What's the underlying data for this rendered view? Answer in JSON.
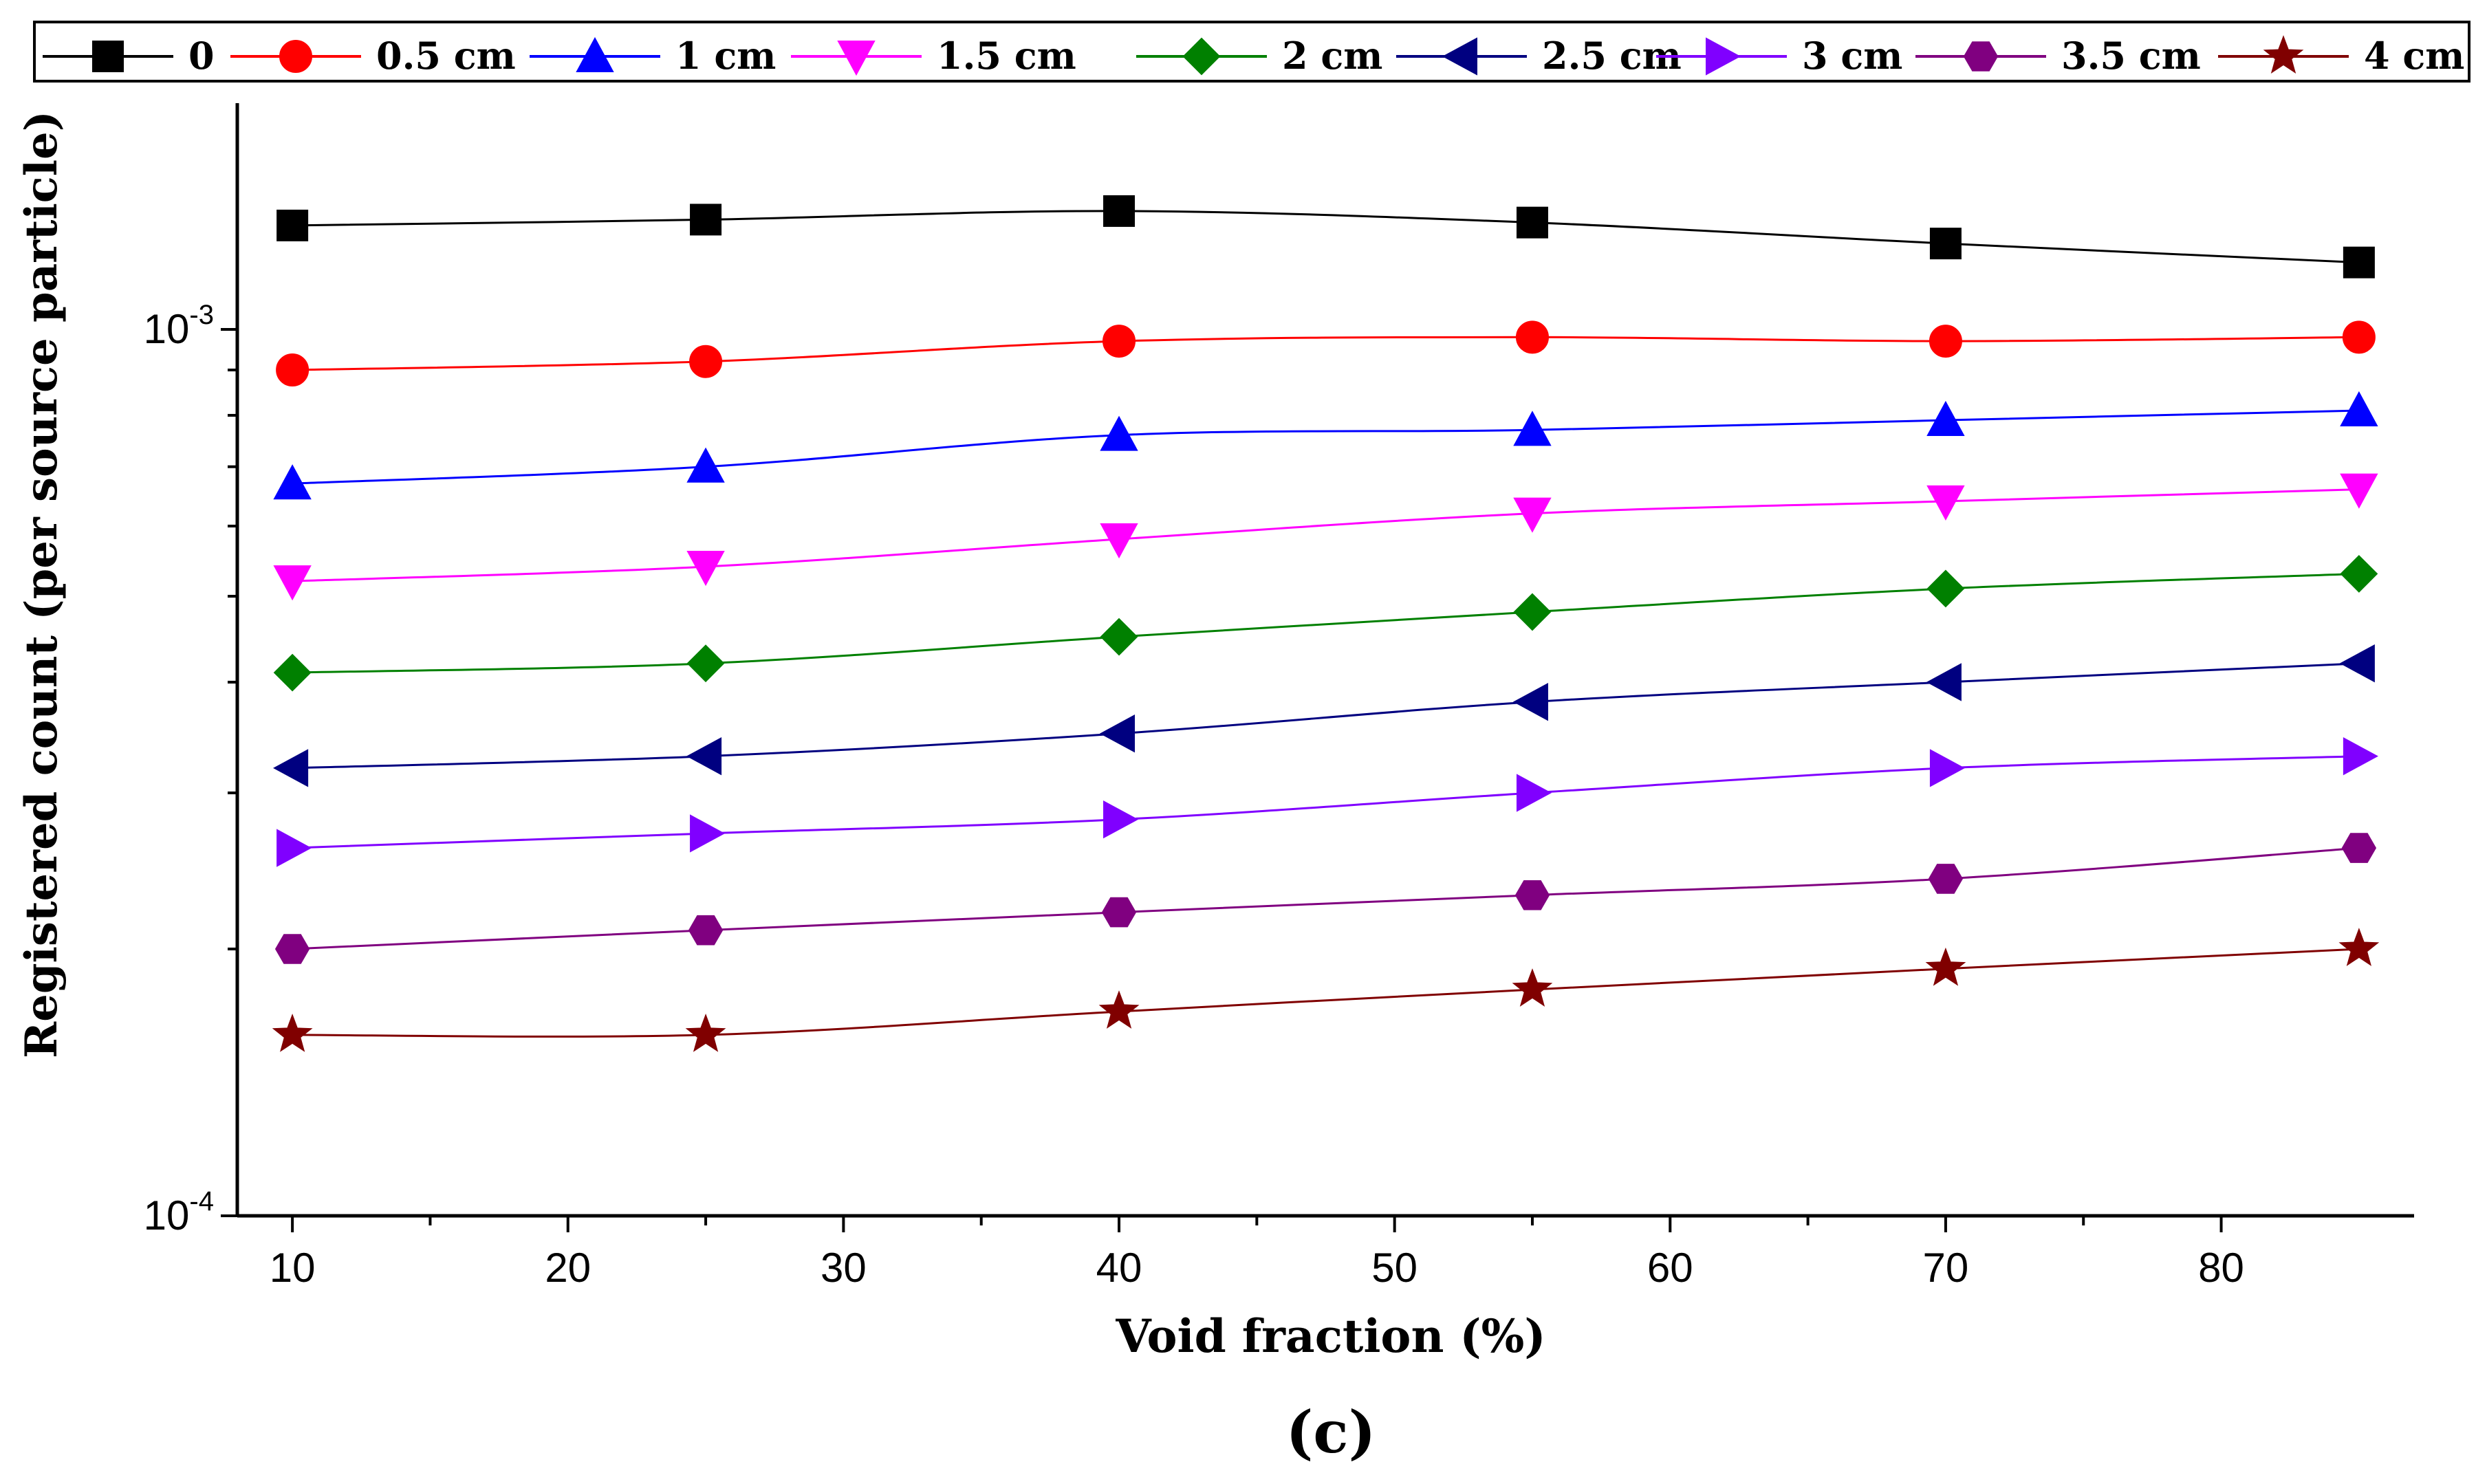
{
  "chart_data": {
    "type": "line",
    "title": "",
    "panel_label": "(c)",
    "xlabel": "Void fraction (%)",
    "ylabel": "Registered count (per source particle)",
    "yscale": "log",
    "xlim": [
      8,
      87
    ],
    "ylim": [
      0.0001,
      0.0018
    ],
    "x": [
      10,
      25,
      40,
      55,
      70,
      85
    ],
    "x_ticks": [
      10,
      20,
      30,
      40,
      50,
      60,
      70,
      80
    ],
    "x_tick_labels": [
      "10",
      "20",
      "30",
      "40",
      "50",
      "60",
      "70",
      "80"
    ],
    "y_ticks": [
      {
        "value": 0.001,
        "base": "10",
        "exp": "-3"
      },
      {
        "value": 0.0001,
        "base": "10",
        "exp": "-4"
      }
    ],
    "legend_position": "top",
    "series": [
      {
        "name": "0",
        "marker": "square",
        "color": "#000000",
        "values": [
          0.00131,
          0.00133,
          0.00136,
          0.00132,
          0.00125,
          0.00119
        ]
      },
      {
        "name": "0.5 cm",
        "marker": "circle",
        "color": "#ff0000",
        "values": [
          0.0009,
          0.00092,
          0.00097,
          0.00098,
          0.00097,
          0.00098
        ]
      },
      {
        "name": "1 cm",
        "marker": "triangle-up",
        "color": "#0000ff",
        "values": [
          0.00067,
          0.0007,
          0.00076,
          0.00077,
          0.00079,
          0.00081
        ]
      },
      {
        "name": "1.5 cm",
        "marker": "triangle-down",
        "color": "#ff00ff",
        "values": [
          0.00052,
          0.00054,
          0.00058,
          0.00062,
          0.00064,
          0.00066
        ]
      },
      {
        "name": "2 cm",
        "marker": "diamond",
        "color": "#008000",
        "values": [
          0.00041,
          0.00042,
          0.00045,
          0.00048,
          0.00051,
          0.00053
        ]
      },
      {
        "name": "2.5 cm",
        "marker": "triangle-left",
        "color": "#000080",
        "values": [
          0.00032,
          0.00033,
          0.00035,
          0.00038,
          0.0004,
          0.00042
        ]
      },
      {
        "name": "3 cm",
        "marker": "triangle-right",
        "color": "#8000ff",
        "values": [
          0.00026,
          0.00027,
          0.00028,
          0.0003,
          0.00032,
          0.00033
        ]
      },
      {
        "name": "3.5 cm",
        "marker": "hexagon",
        "color": "#800080",
        "values": [
          0.0002,
          0.00021,
          0.00022,
          0.00023,
          0.00024,
          0.00026
        ]
      },
      {
        "name": "4 cm",
        "marker": "star",
        "color": "#800000",
        "values": [
          0.00016,
          0.00016,
          0.00017,
          0.00018,
          0.00019,
          0.0002
        ]
      }
    ]
  }
}
